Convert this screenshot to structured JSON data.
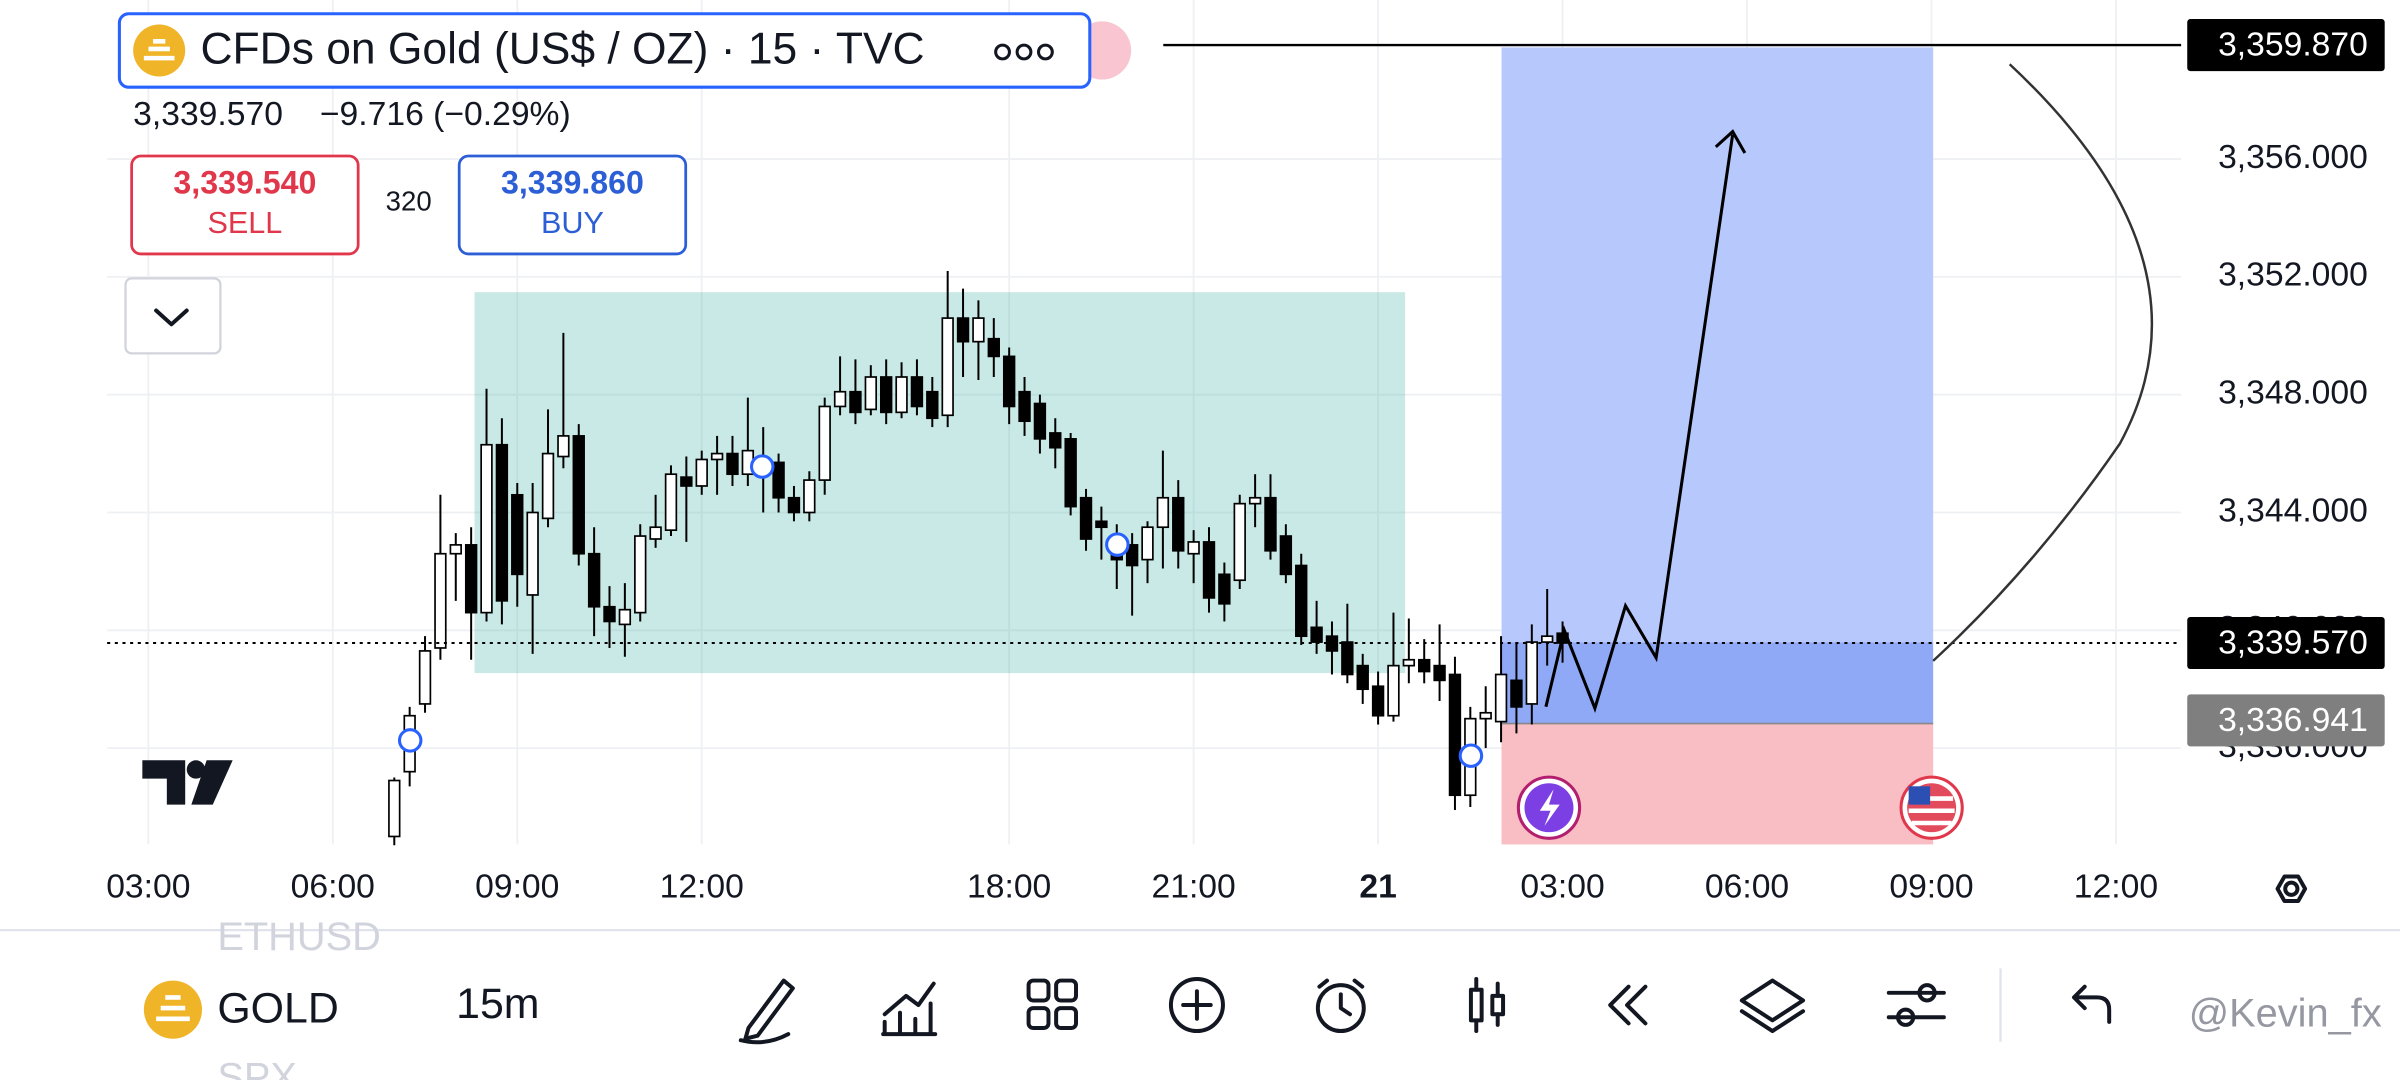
{
  "header": {
    "title": "CFDs on Gold (US$ / OZ) · 15 · TVC",
    "last": "3,339.570",
    "change": "−9.716 (−0.29%)",
    "sell": {
      "price": "3,339.540",
      "label": "SELL"
    },
    "spread": "320",
    "buy": {
      "price": "3,339.860",
      "label": "BUY"
    }
  },
  "chart_data": {
    "type": "candlestick",
    "x": [
      7,
      7.25,
      7.5,
      7.75,
      8,
      8.25,
      8.5,
      8.75,
      9,
      9.25,
      9.5,
      9.75,
      10,
      10.25,
      10.5,
      10.75,
      11,
      11.25,
      11.5,
      11.75,
      12,
      12.25,
      12.5,
      12.75,
      13,
      13.25,
      13.5,
      13.75,
      14,
      14.25,
      14.5,
      14.75,
      15,
      15.25,
      15.5,
      15.75,
      16,
      16.25,
      16.5,
      16.75,
      18,
      18.25,
      18.5,
      18.75,
      19,
      19.25,
      19.5,
      19.75,
      20,
      20.25,
      20.5,
      20.75,
      21,
      21.25,
      21.5,
      21.75,
      22,
      22.25,
      22.5,
      22.75,
      23,
      23.25,
      23.5,
      23.75,
      24,
      24.25,
      24.5,
      24.75,
      25,
      25.25,
      25.5,
      25.75,
      26,
      26.25,
      26.5,
      26.75,
      27
    ],
    "open": [
      3333.0,
      3335.2,
      3337.5,
      3339.4,
      3342.6,
      3342.9,
      3340.6,
      3346.3,
      3344.6,
      3341.2,
      3343.8,
      3345.9,
      3346.6,
      3342.6,
      3340.8,
      3340.2,
      3340.6,
      3343.1,
      3343.4,
      3345.2,
      3344.9,
      3345.8,
      3346.0,
      3345.3,
      3345.6,
      3345.7,
      3344.5,
      3344.0,
      3345.1,
      3347.6,
      3348.1,
      3347.5,
      3348.6,
      3347.4,
      3348.6,
      3348.1,
      3347.3,
      3350.6,
      3349.8,
      3349.9,
      3349.3,
      3348.1,
      3347.7,
      3346.7,
      3346.5,
      3344.5,
      3343.7,
      3343.2,
      3342.9,
      3342.4,
      3343.5,
      3344.5,
      3342.6,
      3343.0,
      3341.9,
      3341.7,
      3344.3,
      3344.5,
      3343.2,
      3342.2,
      3340.1,
      3339.8,
      3339.6,
      3338.8,
      3338.1,
      3337.1,
      3338.8,
      3339.0,
      3338.8,
      3338.5,
      3334.4,
      3337.0,
      3336.9,
      3338.3,
      3337.5,
      3339.6,
      3339.9
    ],
    "high": [
      3335.0,
      3337.4,
      3339.8,
      3344.6,
      3343.3,
      3343.5,
      3348.2,
      3347.2,
      3345.0,
      3345.0,
      3347.5,
      3350.1,
      3347.0,
      3343.5,
      3341.5,
      3341.6,
      3343.6,
      3344.6,
      3345.6,
      3345.9,
      3346.1,
      3346.6,
      3346.6,
      3347.9,
      3346.9,
      3346.0,
      3344.9,
      3345.4,
      3347.9,
      3349.3,
      3349.2,
      3349.0,
      3349.2,
      3349.1,
      3349.2,
      3348.6,
      3352.2,
      3351.6,
      3351.2,
      3350.6,
      3349.6,
      3348.6,
      3348.0,
      3347.2,
      3346.7,
      3344.8,
      3344.2,
      3343.6,
      3343.3,
      3343.7,
      3346.1,
      3345.1,
      3343.4,
      3343.5,
      3342.3,
      3344.6,
      3345.3,
      3345.3,
      3343.6,
      3342.6,
      3341.0,
      3340.3,
      3340.9,
      3339.2,
      3338.6,
      3340.6,
      3340.4,
      3339.7,
      3340.2,
      3339.1,
      3337.4,
      3338.1,
      3339.8,
      3339.6,
      3340.2,
      3341.4,
      3340.3
    ],
    "low": [
      3332.7,
      3334.7,
      3337.2,
      3339.0,
      3341.0,
      3339.0,
      3340.3,
      3340.2,
      3340.8,
      3339.2,
      3343.5,
      3345.5,
      3342.2,
      3339.8,
      3339.4,
      3339.1,
      3340.3,
      3342.8,
      3343.2,
      3343.0,
      3344.6,
      3344.6,
      3344.9,
      3344.9,
      3344.0,
      3344.0,
      3343.7,
      3343.7,
      3344.6,
      3347.3,
      3347.0,
      3347.3,
      3347.0,
      3347.2,
      3347.3,
      3346.9,
      3346.9,
      3348.6,
      3348.5,
      3348.6,
      3347.0,
      3346.6,
      3346.0,
      3345.5,
      3343.9,
      3342.7,
      3342.4,
      3341.4,
      3340.5,
      3341.6,
      3342.1,
      3342.1,
      3341.6,
      3340.6,
      3340.3,
      3341.4,
      3343.5,
      3342.4,
      3341.6,
      3339.5,
      3339.2,
      3338.5,
      3338.2,
      3337.5,
      3336.8,
      3336.9,
      3338.2,
      3338.2,
      3337.6,
      3333.9,
      3334.0,
      3336.0,
      3336.2,
      3336.5,
      3336.8,
      3338.8,
      3338.9
    ],
    "close": [
      3334.9,
      3337.1,
      3339.3,
      3342.6,
      3342.9,
      3340.6,
      3346.3,
      3341.0,
      3341.9,
      3344.0,
      3346.0,
      3346.6,
      3342.6,
      3340.8,
      3340.3,
      3340.7,
      3343.2,
      3343.5,
      3345.3,
      3344.9,
      3345.8,
      3346.0,
      3345.3,
      3346.1,
      3345.7,
      3344.5,
      3344.0,
      3345.1,
      3347.6,
      3348.1,
      3347.4,
      3348.6,
      3347.4,
      3348.6,
      3347.6,
      3347.2,
      3350.6,
      3349.8,
      3350.6,
      3349.3,
      3347.6,
      3347.1,
      3346.5,
      3346.2,
      3344.2,
      3343.1,
      3343.5,
      3342.4,
      3342.2,
      3343.5,
      3344.5,
      3342.7,
      3343.0,
      3341.1,
      3340.9,
      3344.3,
      3344.5,
      3342.7,
      3341.9,
      3339.8,
      3339.6,
      3339.3,
      3338.5,
      3338.0,
      3337.1,
      3338.8,
      3339.0,
      3338.6,
      3338.3,
      3334.4,
      3337.0,
      3337.2,
      3338.5,
      3337.4,
      3339.6,
      3339.8,
      3339.57
    ],
    "up_color": "#ffffff",
    "down_color": "#000000",
    "session_break": [
      17,
      18
    ],
    "xlim": [
      2.33,
      37.06
    ],
    "ylim": [
      3332.73,
      3361.4
    ],
    "xticks": [
      {
        "value": 3,
        "label": "03:00"
      },
      {
        "value": 6,
        "label": "06:00"
      },
      {
        "value": 9,
        "label": "09:00"
      },
      {
        "value": 12,
        "label": "12:00"
      },
      {
        "value": 18,
        "label": "18:00"
      },
      {
        "value": 21,
        "label": "21:00"
      },
      {
        "value": 24,
        "label": "21"
      },
      {
        "value": 27,
        "label": "03:00"
      },
      {
        "value": 30,
        "label": "06:00"
      },
      {
        "value": 33,
        "label": "09:00"
      },
      {
        "value": 36,
        "label": "12:00"
      }
    ],
    "yticks": [
      {
        "value": 3336,
        "label": "3,336.000"
      },
      {
        "value": 3340,
        "label": "3,340.000"
      },
      {
        "value": 3344,
        "label": "3,344.000"
      },
      {
        "value": 3348,
        "label": "3,348.000"
      },
      {
        "value": 3352,
        "label": "3,352.000"
      },
      {
        "value": 3356,
        "label": "3,356.000"
      }
    ],
    "price_labels": [
      {
        "value": 3359.87,
        "label": "3,359.870",
        "color": "#000000"
      },
      {
        "value": 3339.57,
        "label": "3,339.570",
        "color": "#000000"
      },
      {
        "value": 3336.941,
        "label": "3,336.941",
        "color": "#7f7f7f"
      }
    ],
    "grid": true
  },
  "toolbar": {
    "symbols": [
      "ETHUSD",
      "GOLD",
      "SPX"
    ],
    "interval": "15m"
  },
  "watermark": "@Kevin_fx"
}
